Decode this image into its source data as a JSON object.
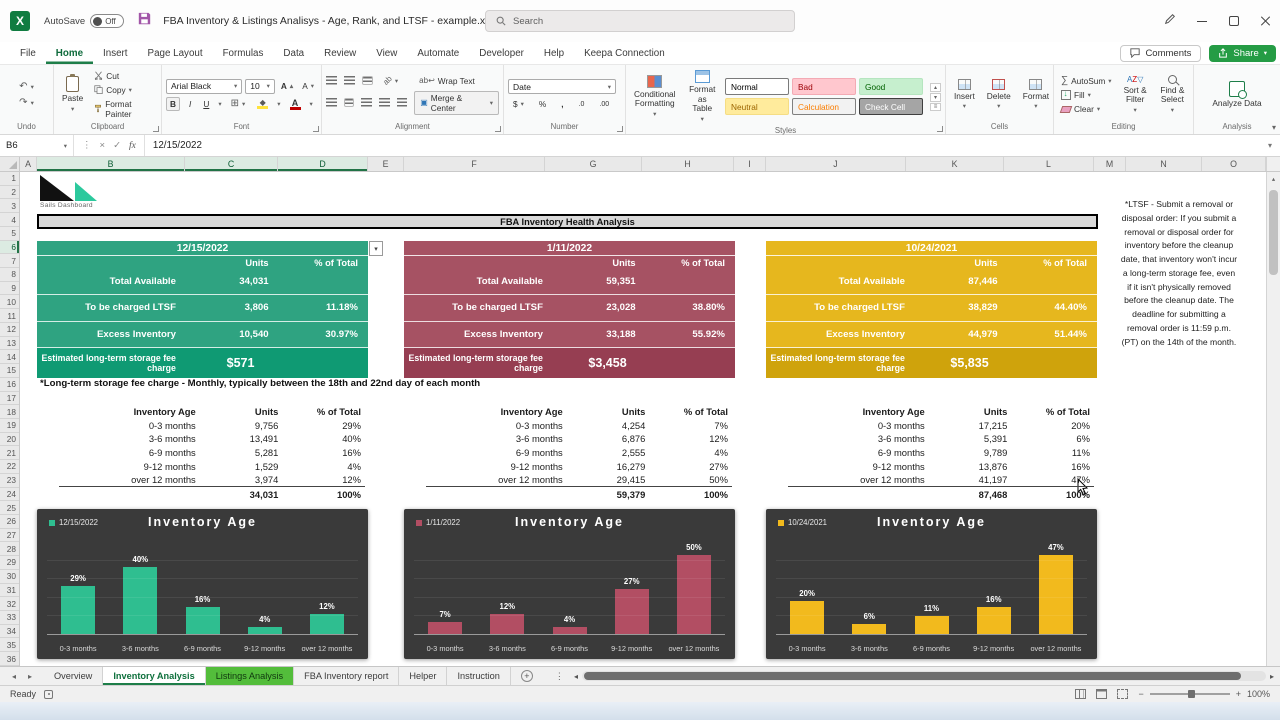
{
  "window": {
    "autosave_label": "AutoSave",
    "autosave_state": "Off",
    "title": "FBA Inventory & Listings Analisys - Age, Rank, and LTSF - example.xlsx",
    "search_placeholder": "Search"
  },
  "menu": {
    "tabs": [
      "File",
      "Home",
      "Insert",
      "Page Layout",
      "Formulas",
      "Data",
      "Review",
      "View",
      "Automate",
      "Developer",
      "Help",
      "Keepa Connection"
    ],
    "active": "Home",
    "comments": "Comments",
    "share": "Share"
  },
  "ribbon": {
    "undo": {
      "label": "Undo"
    },
    "clipboard": {
      "label": "Clipboard",
      "paste": "Paste",
      "cut": "Cut",
      "copy": "Copy",
      "format_painter": "Format Painter"
    },
    "font": {
      "label": "Font",
      "name": "Arial Black",
      "size": "10",
      "bold": "B",
      "italic": "I",
      "underline": "U"
    },
    "alignment": {
      "label": "Alignment",
      "wrap": "Wrap Text",
      "merge": "Merge & Center"
    },
    "number": {
      "label": "Number",
      "format": "Date",
      "currency": "$",
      "percent": "%",
      "comma": ",",
      "dec_inc": ".0",
      "dec_dec": ".00"
    },
    "styles": {
      "label": "Styles",
      "conditional": "Conditional Formatting",
      "format_table": "Format as Table",
      "gallery": [
        {
          "label": "Normal",
          "bg": "#ffffff",
          "fg": "#000000",
          "border": "#7a7a7a"
        },
        {
          "label": "Bad",
          "bg": "#ffc7ce",
          "fg": "#9c0006",
          "border": "#f3aab4"
        },
        {
          "label": "Good",
          "bg": "#c6efce",
          "fg": "#006100",
          "border": "#b5e5bf"
        },
        {
          "label": "Neutral",
          "bg": "#ffeb9c",
          "fg": "#9c6500",
          "border": "#f5dd84"
        },
        {
          "label": "Calculation",
          "bg": "#f2f2f2",
          "fg": "#fa7d00",
          "border": "#7f7f7f"
        },
        {
          "label": "Check Cell",
          "bg": "#a5a5a5",
          "fg": "#ffffff",
          "border": "#3f3f3f"
        }
      ]
    },
    "cells": {
      "label": "Cells",
      "insert": "Insert",
      "delete": "Delete",
      "format": "Format"
    },
    "editing": {
      "label": "Editing",
      "autosum": "AutoSum",
      "fill": "Fill",
      "clear": "Clear",
      "sort": "Sort & Filter",
      "find": "Find & Select"
    },
    "analysis": {
      "label": "Analysis",
      "analyze": "Analyze Data"
    }
  },
  "formula_bar": {
    "name_box": "B6",
    "value": "12/15/2022"
  },
  "grid": {
    "columns": [
      "A",
      "B",
      "C",
      "D",
      "E",
      "F",
      "G",
      "H",
      "I",
      "J",
      "K",
      "L",
      "M",
      "N",
      "O"
    ],
    "selected_columns": [
      "B",
      "C",
      "D"
    ],
    "row_count": 36,
    "selected_row": 6
  },
  "sheet": {
    "logo_text": "Sails Dashboard",
    "main_header": "FBA Inventory Health Analysis",
    "ltsf_note": "*Long-term storage fee charge - Monthly, typically between the 18th and 22nd day of each month",
    "side_note": "*LTSF - Submit a removal or disposal order: If you submit a removal or disposal order for inventory before the cleanup date, that inventory won't incur a long-term storage fee, even if it isn't physically removed before the cleanup date. The deadline for submitting a removal order is 11:59 p.m. (PT) on the 14th of the month.",
    "panels": [
      {
        "date": "12/15/2022",
        "color": "#2fa381",
        "color_dark": "#0f9a73",
        "dropdown": true,
        "col_units": "Units",
        "col_pct": "% of Total",
        "rows": [
          {
            "label": "Total Available",
            "units": "34,031",
            "pct": ""
          },
          {
            "label": "To be charged LTSF",
            "units": "3,806",
            "pct": "11.18%"
          },
          {
            "label": "Excess Inventory",
            "units": "10,540",
            "pct": "30.97%"
          }
        ],
        "fee_label": "Estimated long-term storage fee charge",
        "fee_value": "$571"
      },
      {
        "date": "1/11/2022",
        "color": "#a65263",
        "color_dark": "#963e52",
        "dropdown": false,
        "col_units": "Units",
        "col_pct": "% of Total",
        "rows": [
          {
            "label": "Total Available",
            "units": "59,351",
            "pct": ""
          },
          {
            "label": "To be charged LTSF",
            "units": "23,028",
            "pct": "38.80%"
          },
          {
            "label": "Excess Inventory",
            "units": "33,188",
            "pct": "55.92%"
          }
        ],
        "fee_label": "Estimated long-term storage fee charge",
        "fee_value": "$3,458"
      },
      {
        "date": "10/24/2021",
        "color": "#e6b71e",
        "color_dark": "#cfa30c",
        "dropdown": false,
        "col_units": "Units",
        "col_pct": "% of Total",
        "rows": [
          {
            "label": "Total Available",
            "units": "87,446",
            "pct": ""
          },
          {
            "label": "To be charged LTSF",
            "units": "38,829",
            "pct": "44.40%"
          },
          {
            "label": "Excess Inventory",
            "units": "44,979",
            "pct": "51.44%"
          }
        ],
        "fee_label": "Estimated long-term storage fee charge",
        "fee_value": "$5,835"
      }
    ],
    "age_tables": [
      {
        "headers": [
          "Inventory Age",
          "Units",
          "% of Total"
        ],
        "rows": [
          [
            "0-3 months",
            "9,756",
            "29%"
          ],
          [
            "3-6 months",
            "13,491",
            "40%"
          ],
          [
            "6-9 months",
            "5,281",
            "16%"
          ],
          [
            "9-12 months",
            "1,529",
            "4%"
          ],
          [
            "over 12 months",
            "3,974",
            "12%"
          ]
        ],
        "total": [
          "",
          "34,031",
          "100%"
        ]
      },
      {
        "headers": [
          "Inventory Age",
          "Units",
          "% of Total"
        ],
        "rows": [
          [
            "0-3 months",
            "4,254",
            "7%"
          ],
          [
            "3-6 months",
            "6,876",
            "12%"
          ],
          [
            "6-9 months",
            "2,555",
            "4%"
          ],
          [
            "9-12 months",
            "16,279",
            "27%"
          ],
          [
            "over 12 months",
            "29,415",
            "50%"
          ]
        ],
        "total": [
          "",
          "59,379",
          "100%"
        ]
      },
      {
        "headers": [
          "Inventory Age",
          "Units",
          "% of Total"
        ],
        "rows": [
          [
            "0-3 months",
            "17,215",
            "20%"
          ],
          [
            "3-6 months",
            "5,391",
            "6%"
          ],
          [
            "6-9 months",
            "9,789",
            "11%"
          ],
          [
            "9-12 months",
            "13,876",
            "16%"
          ],
          [
            "over 12 months",
            "41,197",
            "47%"
          ]
        ],
        "total": [
          "",
          "87,468",
          "100%"
        ]
      }
    ]
  },
  "chart_data": [
    {
      "type": "bar",
      "title": "Inventory Age",
      "legend": "12/15/2022",
      "color": "#2fbe90",
      "categories": [
        "0-3 months",
        "3-6 months",
        "6-9 months",
        "9-12 months",
        "over 12 months"
      ],
      "values": [
        29,
        40,
        16,
        4,
        12
      ],
      "label_suffix": "%",
      "ylim": [
        0,
        55
      ],
      "grid": true,
      "legend_position": "top-left",
      "background": "#3a3a3a"
    },
    {
      "type": "bar",
      "title": "Inventory Age",
      "legend": "1/11/2022",
      "color": "#b24e63",
      "categories": [
        "0-3 months",
        "3-6 months",
        "6-9 months",
        "9-12 months",
        "over 12 months"
      ],
      "values": [
        7,
        12,
        4,
        27,
        50
      ],
      "label_suffix": "%",
      "ylim": [
        0,
        55
      ],
      "grid": true,
      "legend_position": "top-left",
      "background": "#3a3a3a"
    },
    {
      "type": "bar",
      "title": "Inventory Age",
      "legend": "10/24/2021",
      "color": "#f2ba1d",
      "categories": [
        "0-3 months",
        "3-6 months",
        "6-9 months",
        "9-12 months",
        "over 12 months"
      ],
      "values": [
        20,
        6,
        11,
        16,
        47
      ],
      "label_suffix": "%",
      "ylim": [
        0,
        55
      ],
      "grid": true,
      "legend_position": "top-left",
      "background": "#3a3a3a"
    }
  ],
  "sheet_tabs": {
    "tabs": [
      {
        "label": "Overview"
      },
      {
        "label": "Inventory Analysis",
        "active": true
      },
      {
        "label": "Listings Analysis",
        "fill": "#53bd3b"
      },
      {
        "label": "FBA Inventory report"
      },
      {
        "label": "Helper"
      },
      {
        "label": "Instruction"
      }
    ]
  },
  "status": {
    "mode": "Ready",
    "zoom": "100%"
  },
  "icons": {
    "chevron_down": "▾",
    "chevron_up": "▴",
    "nav_left": "◂",
    "nav_right": "▸",
    "dots": "⋮",
    "undo": "↶",
    "redo": "↷",
    "sigma": "∑",
    "check": "✓",
    "close": "×",
    "fx": "fx",
    "borders": "⊞",
    "diamond": "◆",
    "title_chevron": "∨"
  },
  "colors": {
    "excel_green": "#107c41",
    "share_green": "#259c45",
    "active_tab_green": "#1e7e49"
  }
}
